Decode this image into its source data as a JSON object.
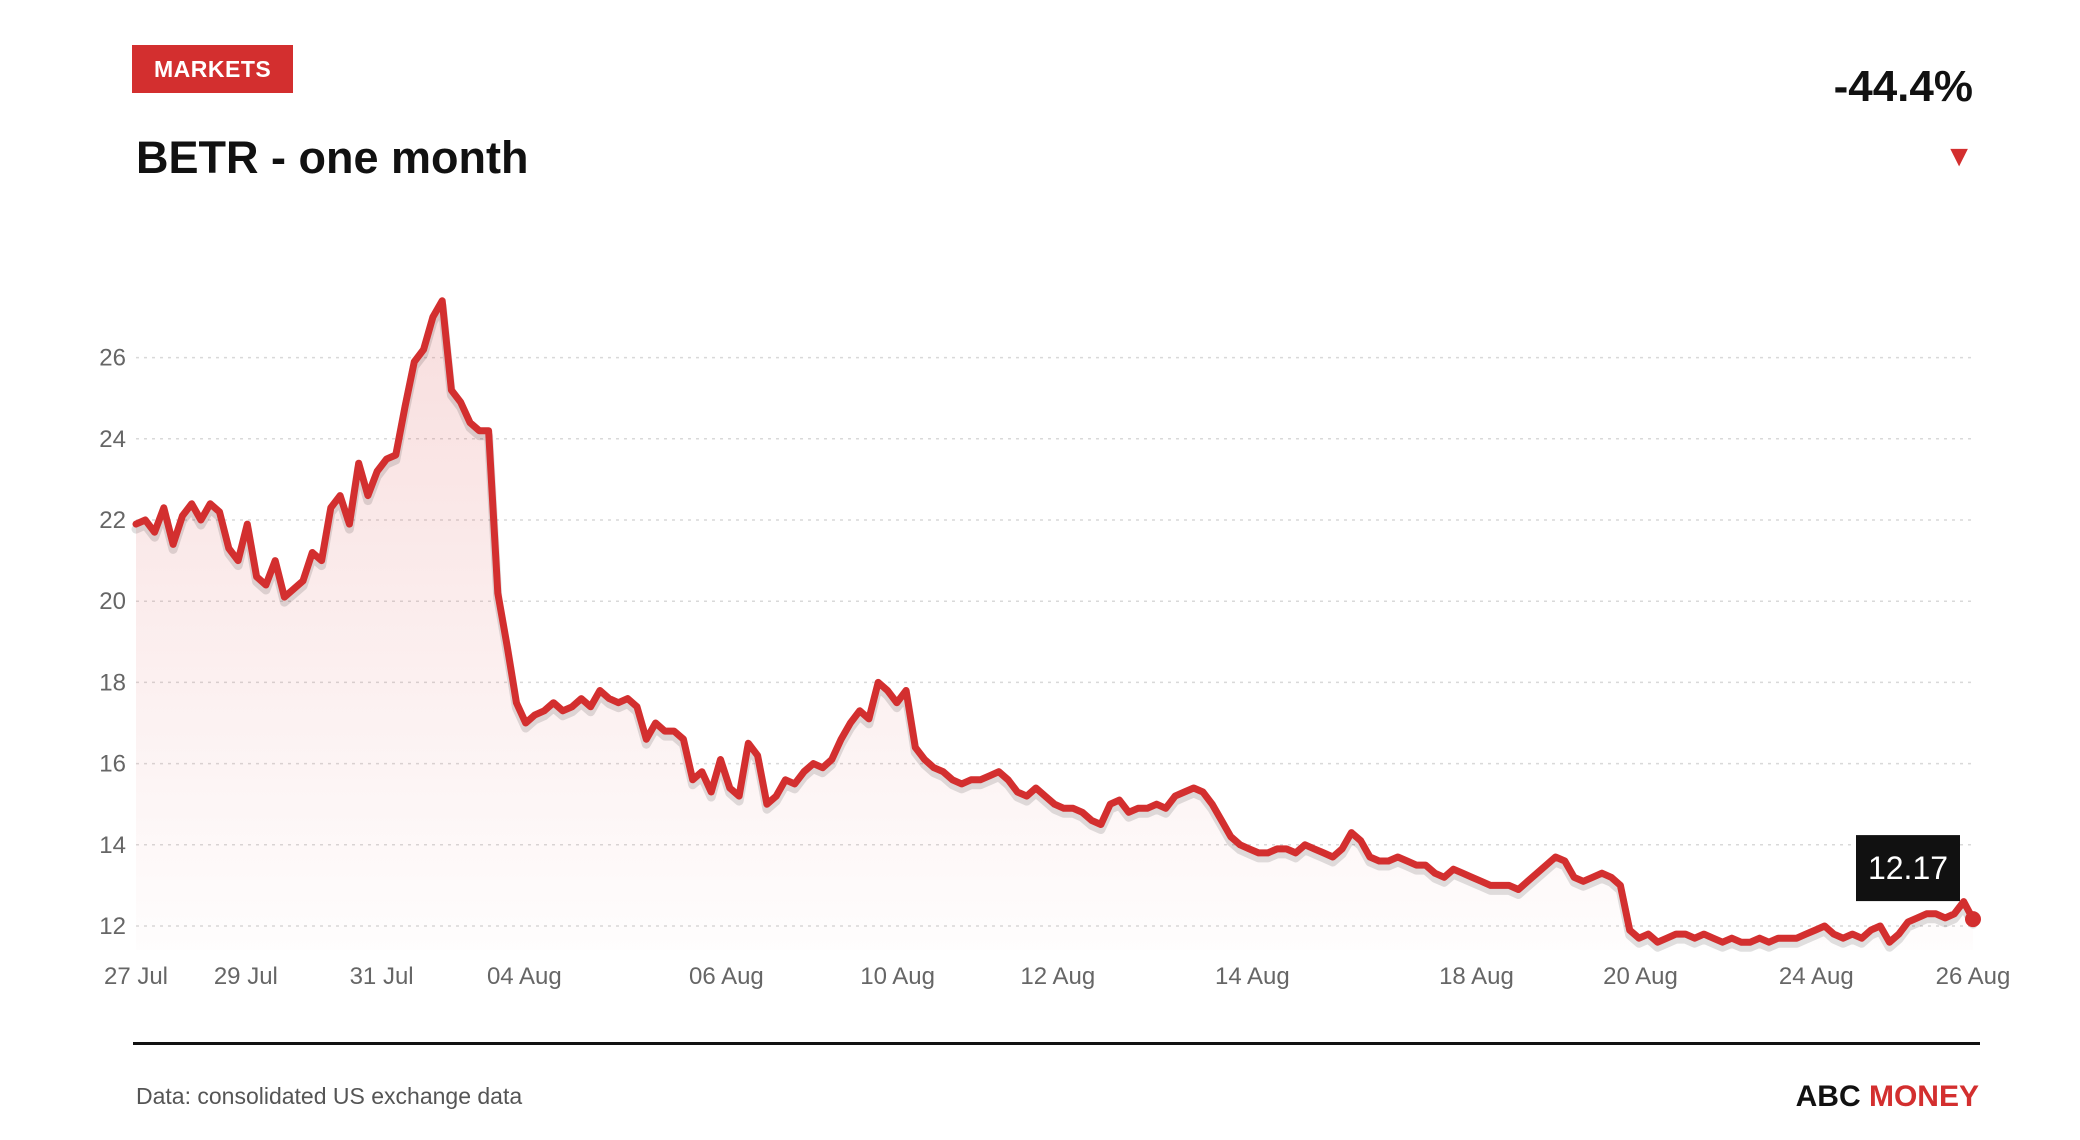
{
  "header": {
    "badge": "MARKETS",
    "title": "BETR - one month",
    "change": "-44.4%",
    "direction": "down",
    "arrow_glyph": "▼",
    "accent_color": "#d32f2f"
  },
  "footer": {
    "source": "Data: consolidated US exchange data",
    "brand_abc": "ABC",
    "brand_money": "MONEY"
  },
  "chart_data": {
    "type": "area",
    "title": "BETR - one month",
    "xlabel": "",
    "ylabel": "",
    "ylim": [
      11.5,
      27.5
    ],
    "yticks": [
      12,
      14,
      16,
      18,
      20,
      22,
      24,
      26
    ],
    "grid": true,
    "line_color": "#d32f2f",
    "x_ticks": [
      "27 Jul",
      "29 Jul",
      "31 Jul",
      "04 Aug",
      "06 Aug",
      "10 Aug",
      "12 Aug",
      "14 Aug",
      "18 Aug",
      "20 Aug",
      "24 Aug",
      "26 Aug"
    ],
    "series": [
      {
        "values": [
          21.9,
          22.0,
          21.7,
          22.3,
          21.4,
          22.1,
          22.4,
          22.0,
          22.4,
          22.2,
          21.3,
          21.0,
          21.9,
          20.6,
          20.4,
          21.0,
          20.1,
          20.3,
          20.5,
          21.2,
          21.0,
          22.3,
          22.6,
          21.9,
          23.4,
          22.6,
          23.2,
          23.5,
          23.6,
          24.8,
          25.9,
          26.2,
          27.0,
          27.4,
          25.2,
          24.9,
          24.4,
          24.2,
          24.2,
          20.2,
          18.9,
          17.5,
          17.0,
          17.2,
          17.3,
          17.5,
          17.3,
          17.4,
          17.6,
          17.4,
          17.8,
          17.6,
          17.5,
          17.6,
          17.4,
          16.6,
          17.0,
          16.8,
          16.8,
          16.6,
          15.6,
          15.8,
          15.3,
          16.1,
          15.4,
          15.2,
          16.5,
          16.2,
          15.0,
          15.2,
          15.6,
          15.5,
          15.8,
          16.0,
          15.9,
          16.1,
          16.6,
          17.0,
          17.3,
          17.1,
          18.0,
          17.8,
          17.5,
          17.8,
          16.4,
          16.1,
          15.9,
          15.8,
          15.6,
          15.5,
          15.6,
          15.6,
          15.7,
          15.8,
          15.6,
          15.3,
          15.2,
          15.4,
          15.2,
          15.0,
          14.9,
          14.9,
          14.8,
          14.6,
          14.5,
          15.0,
          15.1,
          14.8,
          14.9,
          14.9,
          15.0,
          14.9,
          15.2,
          15.3,
          15.4,
          15.3,
          15.0,
          14.6,
          14.2,
          14.0,
          13.9,
          13.8,
          13.8,
          13.9,
          13.9,
          13.8,
          14.0,
          13.9,
          13.8,
          13.7,
          13.9,
          14.3,
          14.1,
          13.7,
          13.6,
          13.6,
          13.7,
          13.6,
          13.5,
          13.5,
          13.3,
          13.2,
          13.4,
          13.3,
          13.2,
          13.1,
          13.0,
          13.0,
          13.0,
          12.9,
          13.1,
          13.3,
          13.5,
          13.7,
          13.6,
          13.2,
          13.1,
          13.2,
          13.3,
          13.2,
          13.0,
          11.9,
          11.7,
          11.8,
          11.6,
          11.7,
          11.8,
          11.8,
          11.7,
          11.8,
          11.7,
          11.6,
          11.7,
          11.6,
          11.6,
          11.7,
          11.6,
          11.7,
          11.7,
          11.7,
          11.8,
          11.9,
          12.0,
          11.8,
          11.7,
          11.8,
          11.7,
          11.9,
          12.0,
          11.6,
          11.8,
          12.1,
          12.2,
          12.3,
          12.3,
          12.2,
          12.3,
          12.6,
          12.17
        ]
      }
    ],
    "last_value_label": "12.17"
  }
}
